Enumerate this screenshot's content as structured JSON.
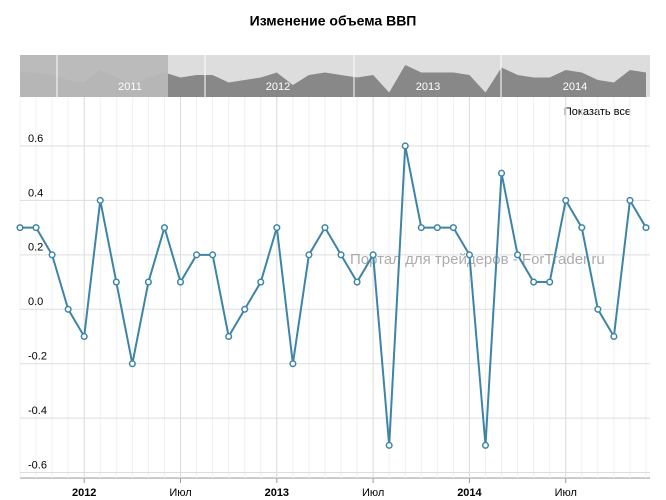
{
  "chart_data": {
    "type": "line",
    "title": "Изменение объема ВВП",
    "watermark": "Портал для трейдеров - ForTrader.ru",
    "button": "Показать все",
    "navigator_labels": [
      "2011",
      "2012",
      "2013",
      "2014"
    ],
    "x": [
      "2011-09",
      "2011-10",
      "2011-11",
      "2011-12",
      "2012-01",
      "2012-02",
      "2012-03",
      "2012-04",
      "2012-05",
      "2012-06",
      "2012-07",
      "2012-08",
      "2012-09",
      "2012-10",
      "2012-11",
      "2012-12",
      "2013-01",
      "2013-02",
      "2013-03",
      "2013-04",
      "2013-05",
      "2013-06",
      "2013-07",
      "2013-08",
      "2013-09",
      "2013-10",
      "2013-11",
      "2013-12",
      "2014-01",
      "2014-02",
      "2014-03",
      "2014-04",
      "2014-05",
      "2014-06",
      "2014-07",
      "2014-08",
      "2014-09",
      "2014-10",
      "2014-11",
      "2014-12"
    ],
    "values": [
      0.3,
      0.3,
      0.2,
      0.0,
      -0.1,
      0.4,
      0.1,
      -0.2,
      0.1,
      0.3,
      0.1,
      0.2,
      0.2,
      -0.1,
      0.0,
      0.1,
      0.3,
      -0.2,
      0.2,
      0.3,
      0.2,
      0.1,
      0.2,
      -0.5,
      0.6,
      0.3,
      0.3,
      0.3,
      0.2,
      -0.5,
      0.5,
      0.2,
      0.1,
      0.1,
      0.4,
      0.3,
      0.0,
      -0.1,
      0.4,
      0.3
    ],
    "color": "#3d84a8",
    "xlim": [
      "2011-09",
      "2014-12"
    ],
    "xticks": [
      {
        "value": "2012-01",
        "label": "2012"
      },
      {
        "value": "2012-07",
        "label": "Июл"
      },
      {
        "value": "2013-01",
        "label": "2013"
      },
      {
        "value": "2013-07",
        "label": "Июл"
      },
      {
        "value": "2014-01",
        "label": "2014"
      },
      {
        "value": "2014-07",
        "label": "Июл"
      }
    ],
    "ylim": [
      -0.62,
      0.78
    ],
    "yticks": [
      0.6,
      0.4,
      0.2,
      {
        "value": 0,
        "label": "0.0"
      },
      -0.2,
      -0.4,
      -0.6
    ],
    "grid": true
  }
}
